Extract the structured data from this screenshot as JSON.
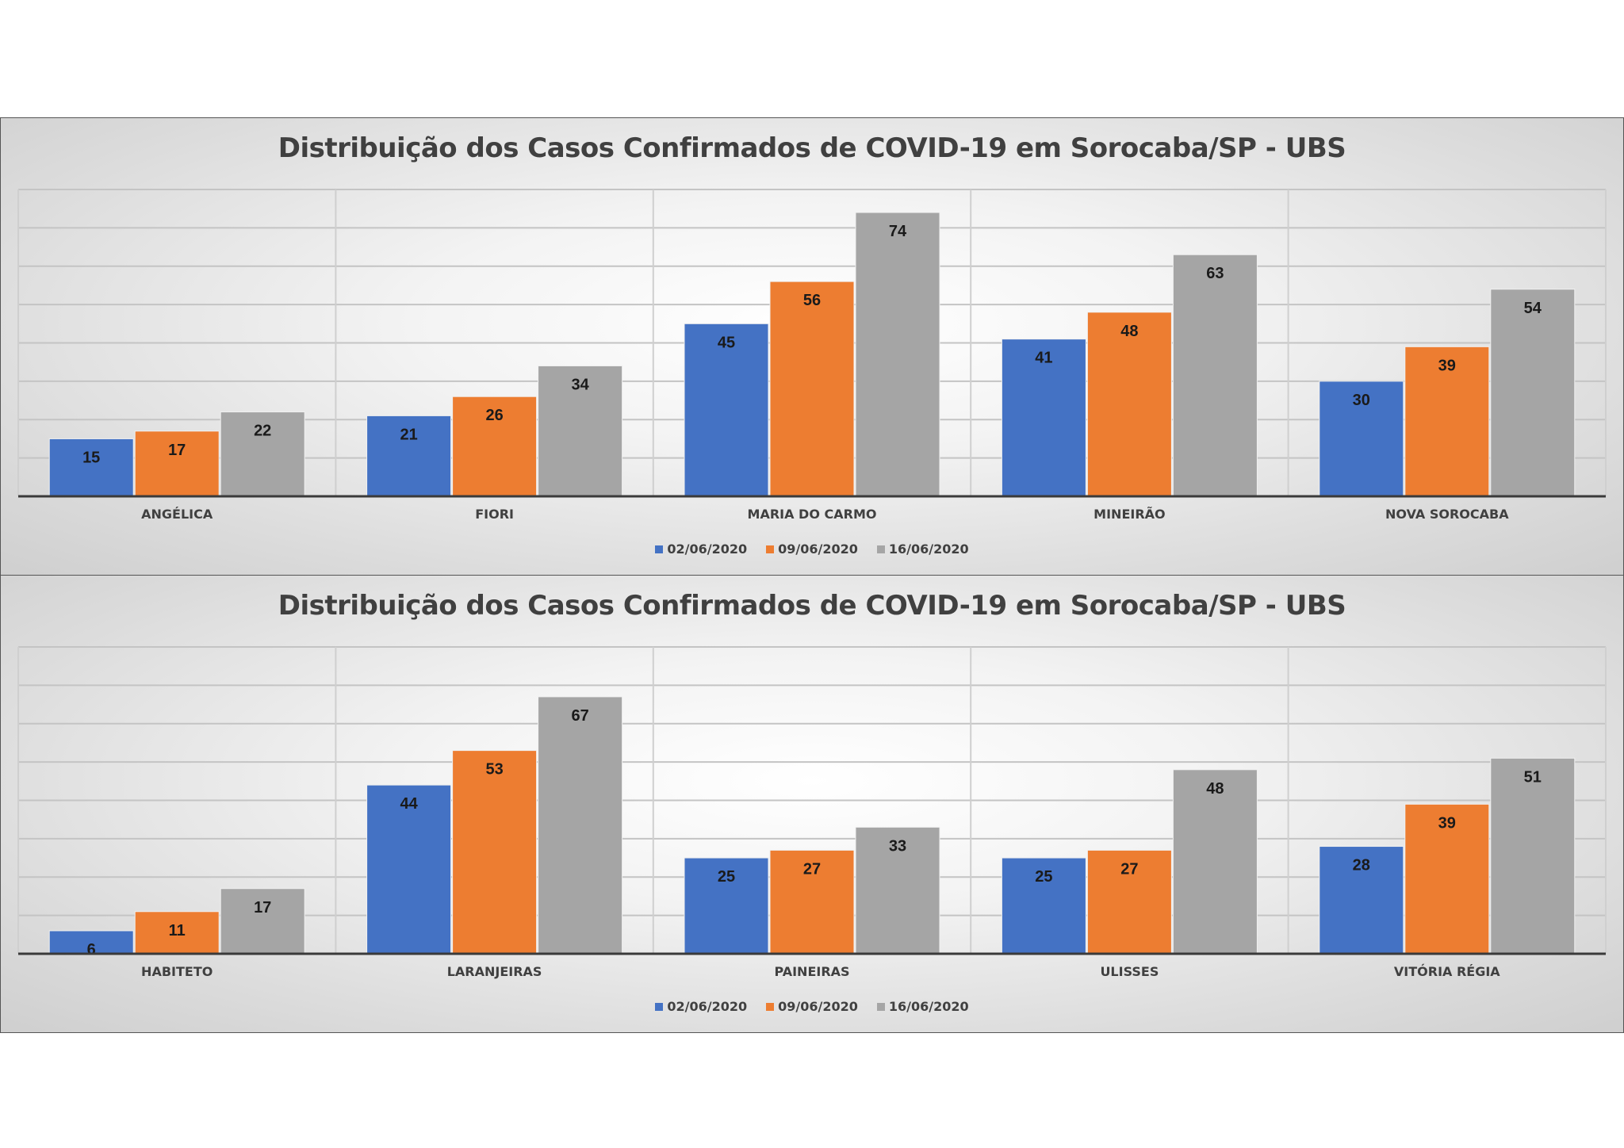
{
  "chart_data": [
    {
      "type": "bar",
      "title": "Distribuição dos Casos Confirmados de COVID-19 em Sorocaba/SP - UBS",
      "categories": [
        "ANGÉLICA",
        "FIORI",
        "MARIA DO CARMO",
        "MINEIRÃO",
        "NOVA SOROCABA"
      ],
      "series": [
        {
          "name": "02/06/2020",
          "color": "#4472C4",
          "values": [
            15,
            21,
            45,
            41,
            30
          ]
        },
        {
          "name": "09/06/2020",
          "color": "#ED7D31",
          "values": [
            17,
            26,
            56,
            48,
            39
          ]
        },
        {
          "name": "16/06/2020",
          "color": "#A5A5A5",
          "values": [
            22,
            34,
            74,
            63,
            54
          ]
        }
      ],
      "ylim": [
        0,
        80
      ],
      "grid": true,
      "legend": "bottom"
    },
    {
      "type": "bar",
      "title": "Distribuição dos Casos Confirmados de COVID-19 em Sorocaba/SP - UBS",
      "categories": [
        "HABITETO",
        "LARANJEIRAS",
        "PAINEIRAS",
        "ULISSES",
        "VITÓRIA RÉGIA"
      ],
      "series": [
        {
          "name": "02/06/2020",
          "color": "#4472C4",
          "values": [
            6,
            44,
            25,
            25,
            28
          ]
        },
        {
          "name": "09/06/2020",
          "color": "#ED7D31",
          "values": [
            11,
            53,
            27,
            27,
            39
          ]
        },
        {
          "name": "16/06/2020",
          "color": "#A5A5A5",
          "values": [
            17,
            67,
            33,
            48,
            51
          ]
        }
      ],
      "ylim": [
        0,
        80
      ],
      "grid": true,
      "legend": "bottom"
    }
  ]
}
